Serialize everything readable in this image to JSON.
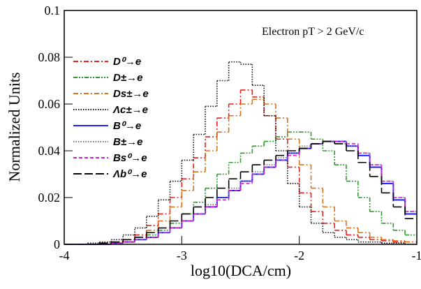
{
  "chart_data": {
    "type": "histogram",
    "annotation": "Electron pT > 2 GeV/c",
    "x_label": "log10(DCA/cm)",
    "y_label": "Normalized Units",
    "bins": [
      -4,
      -3.9,
      -3.8,
      -3.7,
      -3.6,
      -3.5,
      -3.4,
      -3.3,
      -3.2,
      -3.1,
      -3,
      -2.9,
      -2.8,
      -2.7,
      -2.6,
      -2.5,
      -2.4,
      -2.3,
      -2.2,
      -2.1,
      -2,
      -1.9,
      -1.8,
      -1.7,
      -1.6,
      -1.5,
      -1.4,
      -1.3,
      -1.2,
      -1.1,
      -1
    ],
    "xlim": [
      -4,
      -1
    ],
    "ylim": [
      0,
      0.1
    ],
    "xticks": [
      -4,
      -3,
      -2,
      -1
    ],
    "yticks": [
      0,
      0.02,
      0.04,
      0.06,
      0.08,
      0.1
    ],
    "legend": "upper left",
    "series": [
      {
        "name": "D⁰→e",
        "color": "#e8201c",
        "line_style": "dashdot",
        "values": [
          0,
          0,
          0,
          0.0005,
          0.001,
          0.002,
          0.004,
          0.008,
          0.013,
          0.02,
          0.028,
          0.037,
          0.046,
          0.054,
          0.06,
          0.066,
          0.063,
          0.055,
          0.045,
          0.033,
          0.022,
          0.014,
          0.009,
          0.006,
          0.004,
          0.003,
          0.002,
          0.0015,
          0.001,
          0.001
        ]
      },
      {
        "name": "D±→e",
        "color": "#2e9a2e",
        "line_style": "dashdotdot",
        "values": [
          0,
          0,
          0,
          0,
          0.0005,
          0.001,
          0.002,
          0.004,
          0.006,
          0.009,
          0.013,
          0.018,
          0.024,
          0.03,
          0.035,
          0.039,
          0.042,
          0.044,
          0.046,
          0.048,
          0.048,
          0.045,
          0.04,
          0.034,
          0.027,
          0.02,
          0.014,
          0.009,
          0.006,
          0.004
        ]
      },
      {
        "name": "Ds±→e",
        "color": "#d9731a",
        "line_style": "dashdot",
        "values": [
          0,
          0,
          0,
          0.0005,
          0.001,
          0.002,
          0.003,
          0.006,
          0.01,
          0.016,
          0.023,
          0.031,
          0.04,
          0.048,
          0.055,
          0.06,
          0.062,
          0.06,
          0.054,
          0.045,
          0.034,
          0.024,
          0.016,
          0.01,
          0.007,
          0.005,
          0.003,
          0.002,
          0.0015,
          0.001
        ]
      },
      {
        "name": "Λc±→e",
        "color": "#111111",
        "line_style": "dotted",
        "values": [
          0,
          0,
          0.0005,
          0.001,
          0.002,
          0.004,
          0.007,
          0.012,
          0.019,
          0.027,
          0.036,
          0.047,
          0.059,
          0.07,
          0.078,
          0.077,
          0.068,
          0.055,
          0.04,
          0.026,
          0.016,
          0.009,
          0.005,
          0.003,
          0.002,
          0.001,
          0.001,
          0.0005,
          0.0005,
          0
        ]
      },
      {
        "name": "B⁰→e",
        "color": "#1a1aff",
        "line_style": "solid",
        "values": [
          0,
          0,
          0,
          0,
          0.0005,
          0.001,
          0.002,
          0.003,
          0.005,
          0.007,
          0.01,
          0.013,
          0.016,
          0.02,
          0.023,
          0.027,
          0.03,
          0.033,
          0.036,
          0.039,
          0.041,
          0.043,
          0.044,
          0.044,
          0.042,
          0.038,
          0.033,
          0.026,
          0.019,
          0.013
        ]
      },
      {
        "name": "B±→e",
        "color": "#777777",
        "line_style": "dotted",
        "values": [
          0,
          0,
          0,
          0,
          0.0005,
          0.001,
          0.002,
          0.003,
          0.005,
          0.007,
          0.01,
          0.013,
          0.017,
          0.02,
          0.024,
          0.027,
          0.031,
          0.034,
          0.037,
          0.039,
          0.042,
          0.043,
          0.044,
          0.043,
          0.042,
          0.039,
          0.034,
          0.027,
          0.02,
          0.014
        ]
      },
      {
        "name": "Bs⁰→e",
        "color": "#d020d0",
        "line_style": "dashed",
        "values": [
          0,
          0,
          0,
          0,
          0.0005,
          0.001,
          0.002,
          0.003,
          0.005,
          0.007,
          0.01,
          0.013,
          0.016,
          0.019,
          0.023,
          0.026,
          0.03,
          0.033,
          0.036,
          0.038,
          0.041,
          0.043,
          0.044,
          0.044,
          0.043,
          0.039,
          0.034,
          0.027,
          0.02,
          0.014
        ]
      },
      {
        "name": "Λb⁰→e",
        "color": "#000000",
        "line_style": "longdash",
        "values": [
          0,
          0,
          0,
          0.0005,
          0.001,
          0.002,
          0.003,
          0.005,
          0.007,
          0.01,
          0.013,
          0.016,
          0.02,
          0.024,
          0.028,
          0.031,
          0.034,
          0.036,
          0.038,
          0.04,
          0.041,
          0.043,
          0.044,
          0.043,
          0.04,
          0.035,
          0.029,
          0.022,
          0.016,
          0.011
        ]
      }
    ]
  }
}
